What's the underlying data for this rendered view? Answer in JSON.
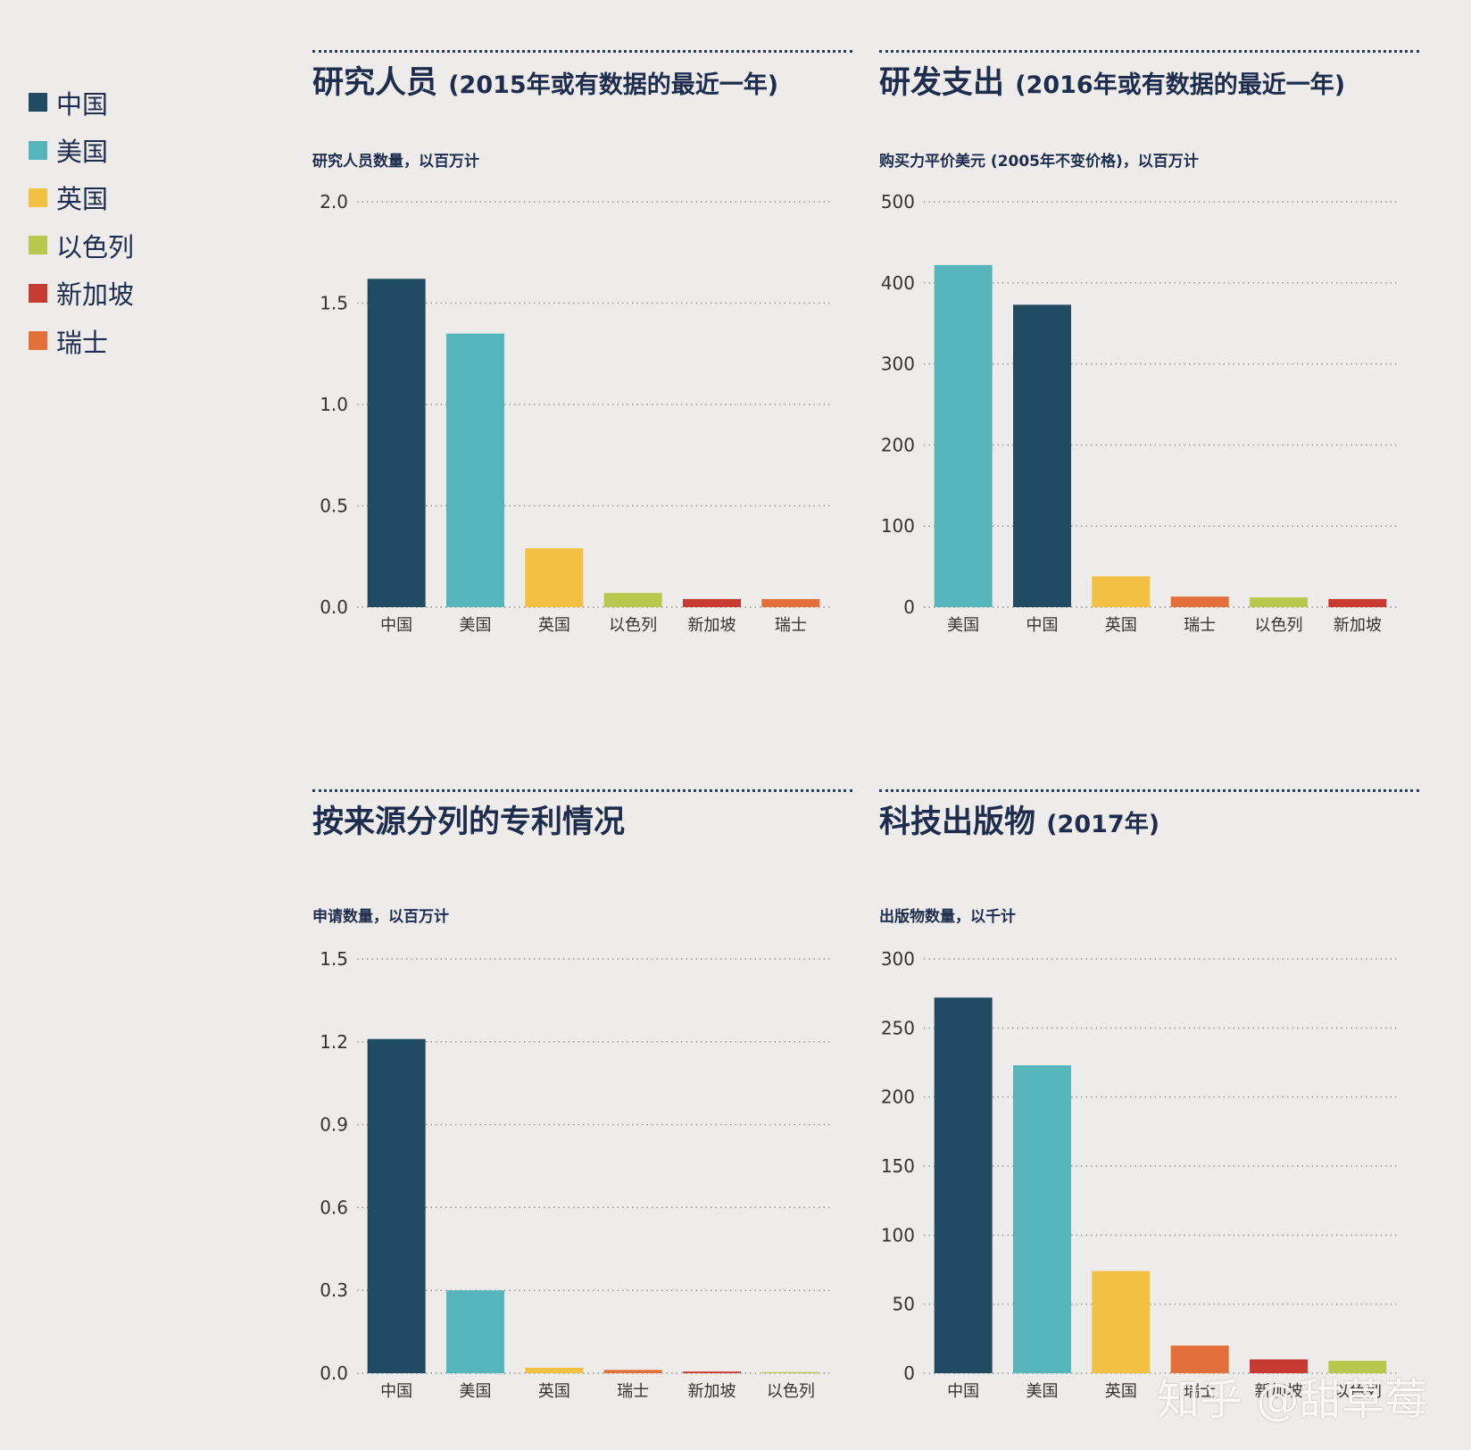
{
  "legend": [
    {
      "label": "中国",
      "color": "#214a63"
    },
    {
      "label": "美国",
      "color": "#55b5bb"
    },
    {
      "label": "英国",
      "color": "#f2c144"
    },
    {
      "label": "以色列",
      "color": "#b7c94d"
    },
    {
      "label": "新加坡",
      "color": "#c73a32"
    },
    {
      "label": "瑞士",
      "color": "#e2703a"
    }
  ],
  "chart_data": [
    {
      "type": "bar",
      "title": "研究人员",
      "title_paren": "(2015年或有数据的最近一年)",
      "ylabel": "研究人员数量，以百万计",
      "categories": [
        "中国",
        "美国",
        "英国",
        "以色列",
        "新加坡",
        "瑞士"
      ],
      "values": [
        1.62,
        1.35,
        0.29,
        0.07,
        0.04,
        0.04
      ],
      "colors": [
        "#214a63",
        "#55b5bb",
        "#f2c144",
        "#b7c94d",
        "#c73a32",
        "#e2703a"
      ],
      "yticks": [
        "0.0",
        "0.5",
        "1.0",
        "1.5",
        "2.0"
      ],
      "ylim": [
        0,
        2
      ],
      "grid": true
    },
    {
      "type": "bar",
      "title": "研发支出",
      "title_paren": "(2016年或有数据的最近一年)",
      "ylabel": "购买力平价美元 (2005年不变价格)，以百万计",
      "categories": [
        "美国",
        "中国",
        "英国",
        "瑞士",
        "以色列",
        "新加坡"
      ],
      "values": [
        422,
        373,
        38,
        13,
        12,
        10
      ],
      "colors": [
        "#55b5bb",
        "#214a63",
        "#f2c144",
        "#e2703a",
        "#b7c94d",
        "#c73a32"
      ],
      "yticks": [
        "0",
        "100",
        "200",
        "300",
        "400",
        "500"
      ],
      "ylim": [
        0,
        500
      ],
      "grid": true
    },
    {
      "type": "bar",
      "title": "按来源分列的专利情况",
      "title_paren": "",
      "ylabel": "申请数量，以百万计",
      "categories": [
        "中国",
        "美国",
        "英国",
        "瑞士",
        "新加坡",
        "以色列"
      ],
      "values": [
        1.21,
        0.3,
        0.02,
        0.012,
        0.006,
        0.004
      ],
      "colors": [
        "#214a63",
        "#55b5bb",
        "#f2c144",
        "#e2703a",
        "#c73a32",
        "#b7c94d"
      ],
      "yticks": [
        "0.0",
        "0.3",
        "0.6",
        "0.9",
        "1.2",
        "1.5"
      ],
      "ylim": [
        0,
        1.5
      ],
      "grid": true
    },
    {
      "type": "bar",
      "title": "科技出版物",
      "title_paren": "(2017年)",
      "ylabel": "出版物数量，以千计",
      "categories": [
        "中国",
        "美国",
        "英国",
        "瑞士",
        "新加坡",
        "以色列"
      ],
      "values": [
        272,
        223,
        74,
        20,
        10,
        9
      ],
      "colors": [
        "#214a63",
        "#55b5bb",
        "#f2c144",
        "#e2703a",
        "#c73a32",
        "#b7c94d"
      ],
      "yticks": [
        "0",
        "50",
        "100",
        "150",
        "200",
        "250",
        "300"
      ],
      "ylim": [
        0,
        300
      ],
      "grid": true
    }
  ],
  "watermark": "知乎 @甜草莓"
}
